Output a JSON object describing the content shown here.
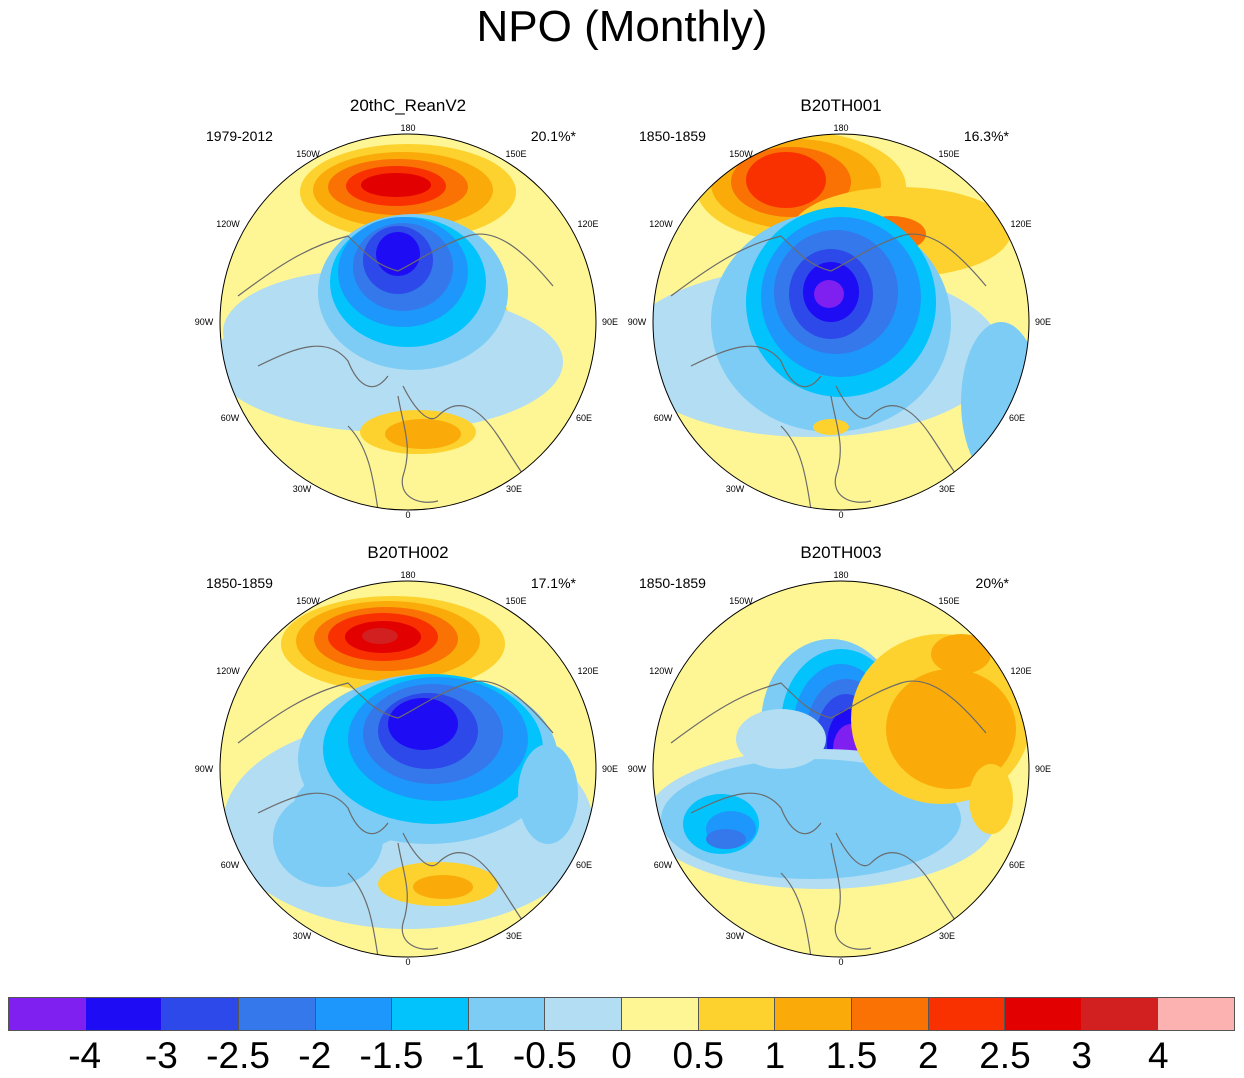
{
  "title": "NPO (Monthly)",
  "panels": [
    {
      "name": "20thC_ReanV2",
      "period": "1979-2012",
      "percent": "20.1%*"
    },
    {
      "name": "B20TH001",
      "period": "1850-1859",
      "percent": "16.3%*"
    },
    {
      "name": "B20TH002",
      "period": "1850-1859",
      "percent": "17.1%*"
    },
    {
      "name": "B20TH003",
      "period": "1850-1859",
      "percent": "20%*"
    }
  ],
  "longitude_labels": {
    "top": "180",
    "tl": "150W",
    "tr": "150E",
    "ul": "120W",
    "ur": "120E",
    "l": "90W",
    "r": "90E",
    "ll": "60W",
    "lr": "60E",
    "bl": "30W",
    "br": "30E",
    "bottom": "0"
  },
  "colorbar": {
    "labels": [
      "-4",
      "-3",
      "-2.5",
      "-2",
      "-1.5",
      "-1",
      "-0.5",
      "0",
      "0.5",
      "1",
      "1.5",
      "2",
      "2.5",
      "3",
      "4"
    ],
    "colors": [
      "#7F1FF0",
      "#1E0CF5",
      "#2D49EA",
      "#3478EB",
      "#1D97FB",
      "#02C3FB",
      "#7CCCF5",
      "#B2DDF3",
      "#FEF694",
      "#FDD22E",
      "#FAAB09",
      "#FA7203",
      "#F93000",
      "#E20001",
      "#D21F1F",
      "#FDB2B2"
    ]
  }
}
